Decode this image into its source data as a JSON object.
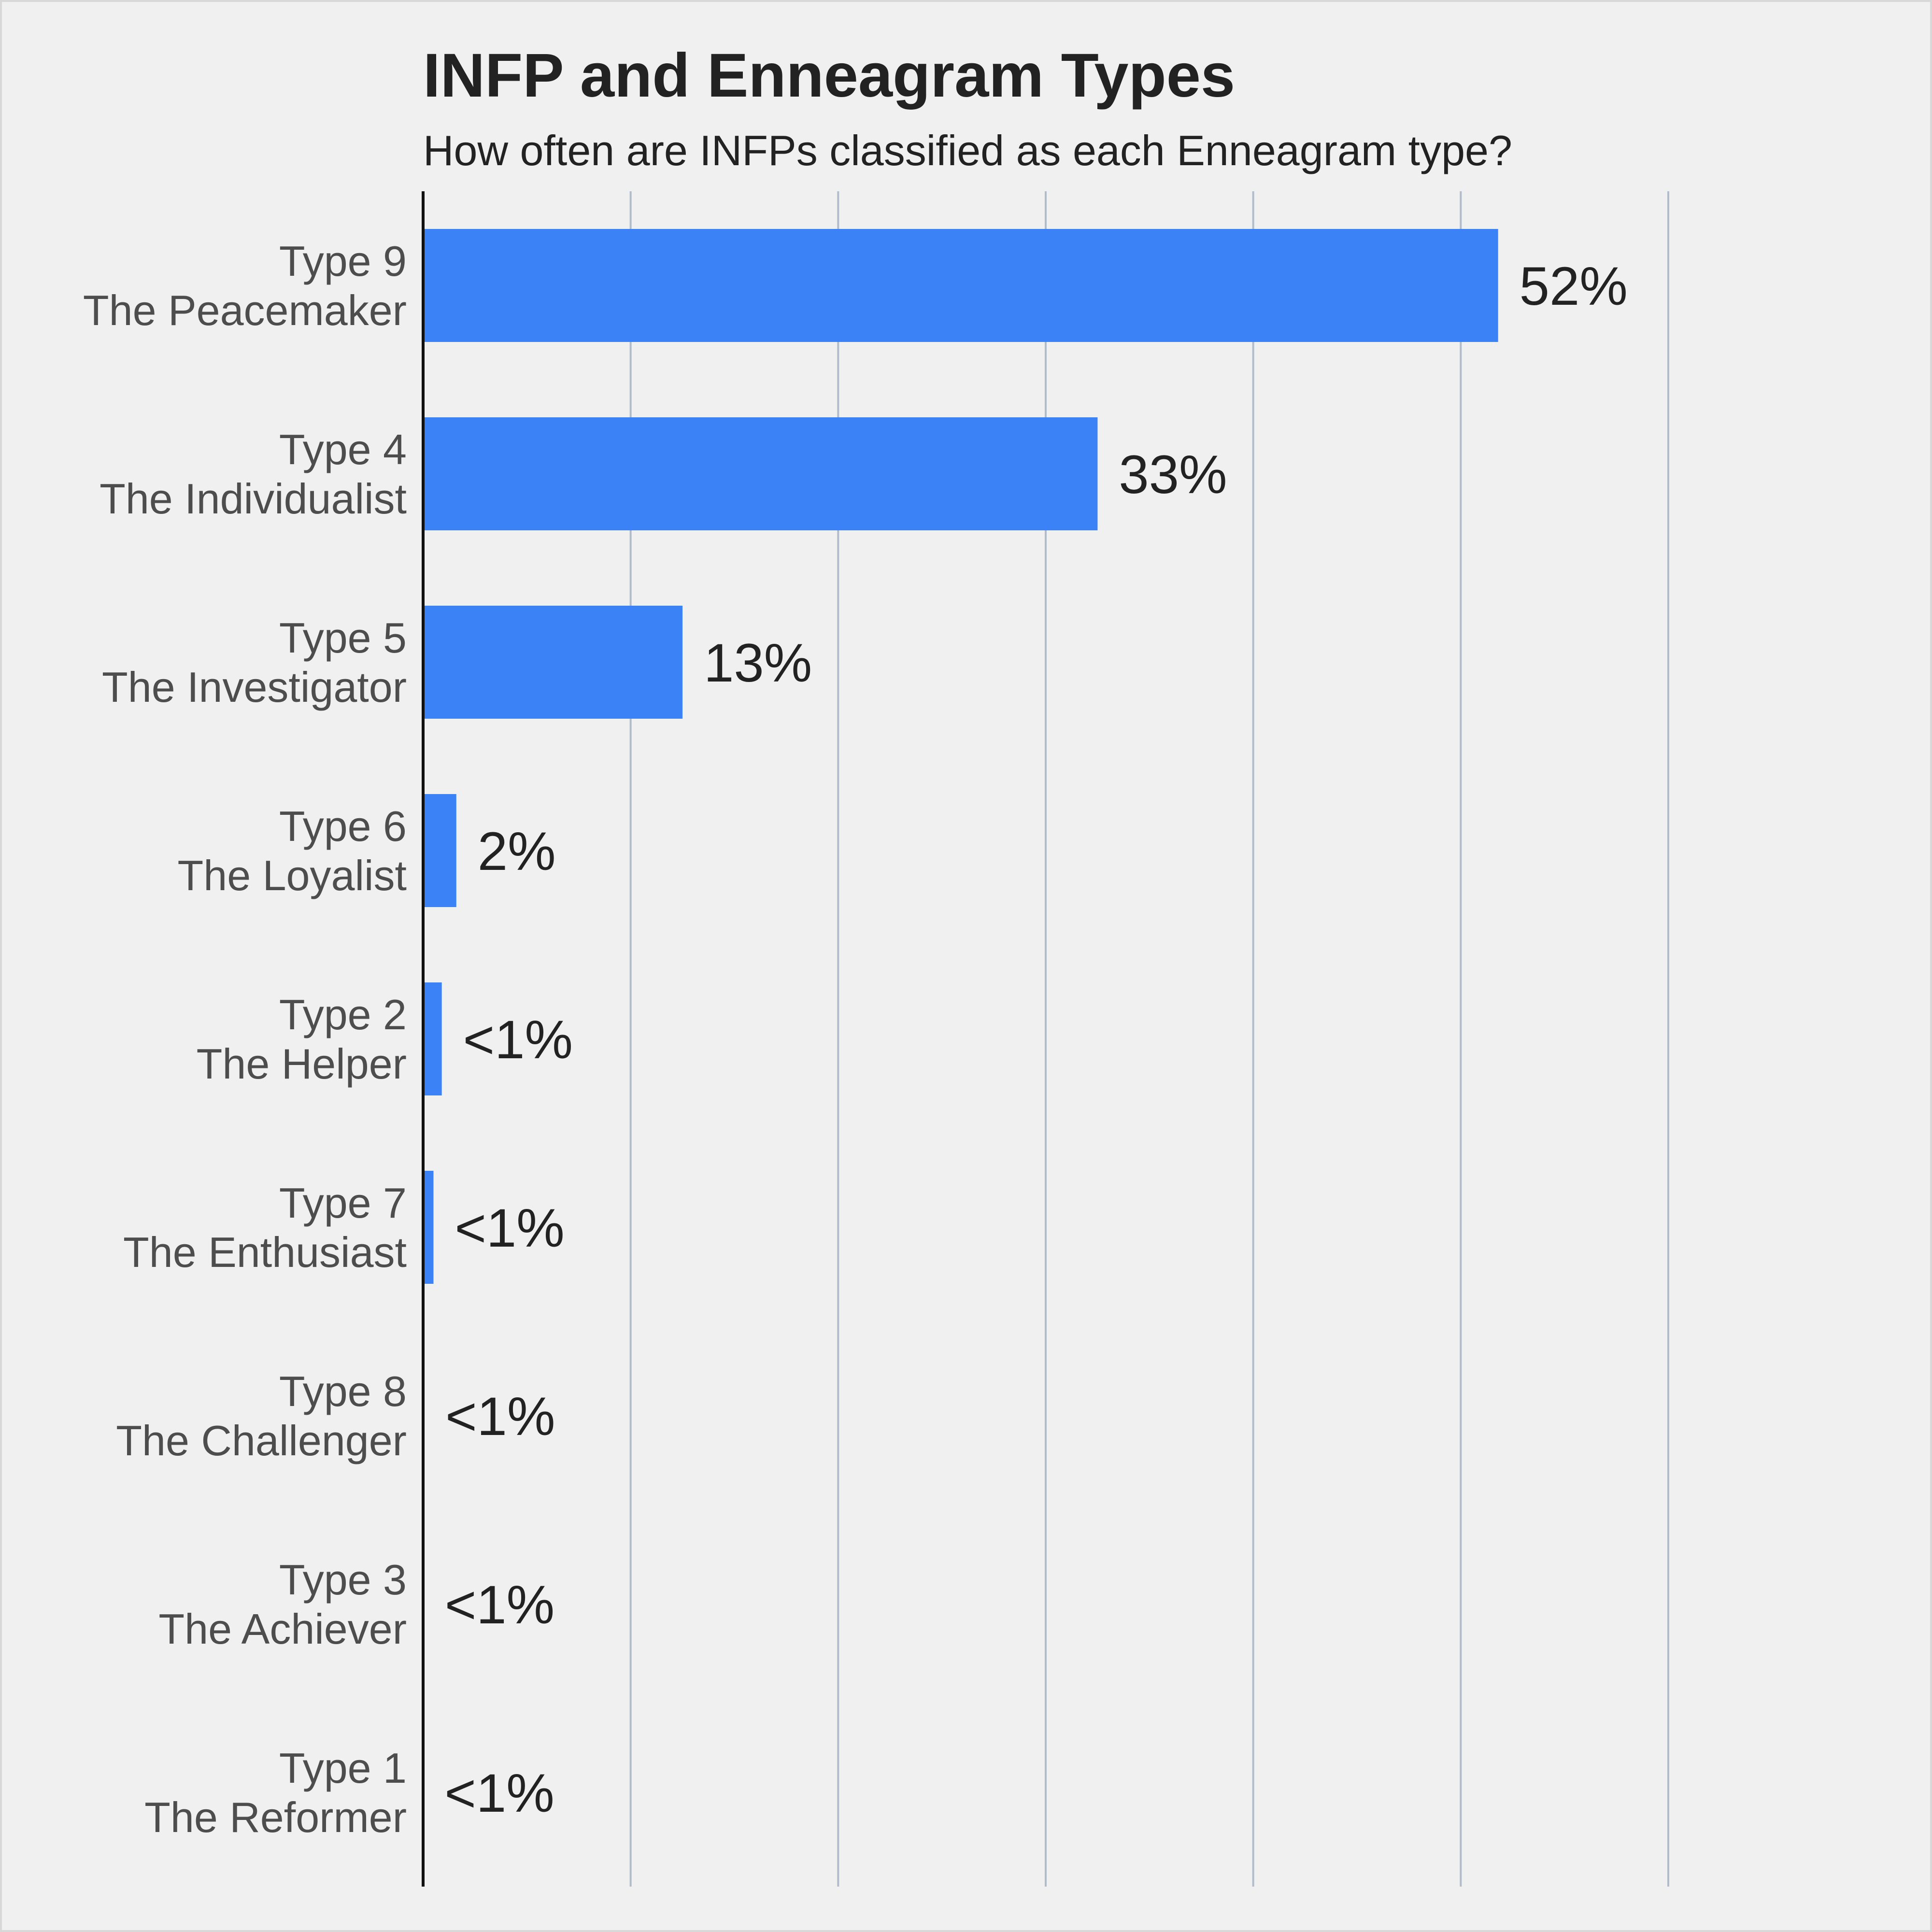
{
  "chart_data": {
    "type": "bar",
    "orientation": "horizontal",
    "title": "INFP and Enneagram Types",
    "subtitle": "How often are INFPs classified as each Enneagram type?",
    "xlabel": "",
    "ylabel": "",
    "xlim": [
      0,
      60
    ],
    "grid": "vertical",
    "legend": "none",
    "bar_color": "#3b82f6",
    "categories": [
      {
        "line1": "Type 9",
        "line2": "The Peacemaker"
      },
      {
        "line1": "Type 4",
        "line2": "The Individualist"
      },
      {
        "line1": "Type 5",
        "line2": "The Investigator"
      },
      {
        "line1": "Type 6",
        "line2": "The Loyalist"
      },
      {
        "line1": "Type 2",
        "line2": "The Helper"
      },
      {
        "line1": "Type 7",
        "line2": "The Enthusiast"
      },
      {
        "line1": "Type 8",
        "line2": "The Challenger"
      },
      {
        "line1": "Type 3",
        "line2": "The Achiever"
      },
      {
        "line1": "Type 1",
        "line2": "The Reformer"
      }
    ],
    "values": [
      51.8,
      32.5,
      12.5,
      1.6,
      0.9,
      0.5,
      0.05,
      0.02,
      0.01
    ],
    "data_labels": [
      "52%",
      "33%",
      "13%",
      "2%",
      "<1%",
      "<1%",
      "<1%",
      "<1%",
      "<1%"
    ]
  }
}
